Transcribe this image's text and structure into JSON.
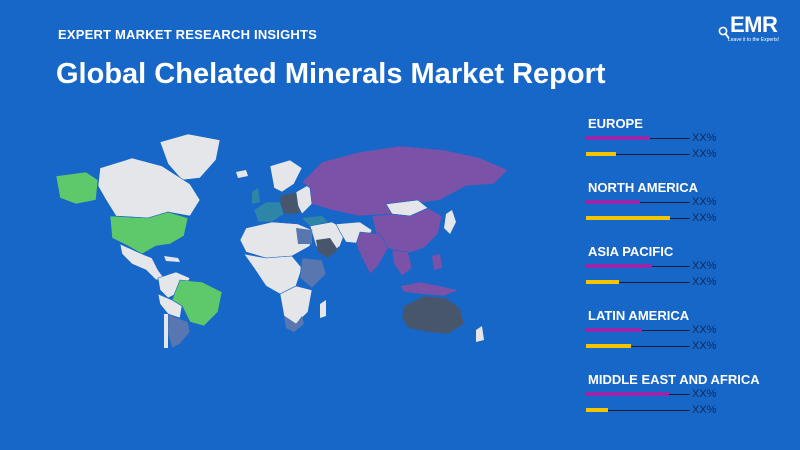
{
  "header": {
    "kicker": "EXPERT MARKET RESEARCH INSIGHTS",
    "title": "Global Chelated Minerals Market Report"
  },
  "logo": {
    "name": "EMR",
    "tagline": "Leave it to the Experts!"
  },
  "colors": {
    "background": "#1767c8",
    "bar_primary": "#9b27a8",
    "bar_secondary": "#f5c400",
    "map_green": "#5ec96a",
    "map_purple": "#7a52a8",
    "map_slate": "#48566b",
    "map_teal": "#2d86a8",
    "map_steel": "#5876b0",
    "map_default": "#e4e6ea"
  },
  "regions": [
    {
      "name": "EUROPE",
      "bars": [
        {
          "fill": 0.58,
          "value": "XX%"
        },
        {
          "fill": 0.27,
          "value": "XX%"
        }
      ]
    },
    {
      "name": "NORTH AMERICA",
      "bars": [
        {
          "fill": 0.49,
          "value": "XX%"
        },
        {
          "fill": 0.76,
          "value": "XX%"
        }
      ]
    },
    {
      "name": "ASIA PACIFIC",
      "bars": [
        {
          "fill": 0.6,
          "value": "XX%"
        },
        {
          "fill": 0.3,
          "value": "XX%"
        }
      ]
    },
    {
      "name": "LATIN AMERICA",
      "bars": [
        {
          "fill": 0.51,
          "value": "XX%"
        },
        {
          "fill": 0.41,
          "value": "XX%"
        }
      ]
    },
    {
      "name": "MIDDLE EAST AND AFRICA",
      "bars": [
        {
          "fill": 0.75,
          "value": "XX%"
        },
        {
          "fill": 0.2,
          "value": "XX%"
        }
      ]
    }
  ]
}
